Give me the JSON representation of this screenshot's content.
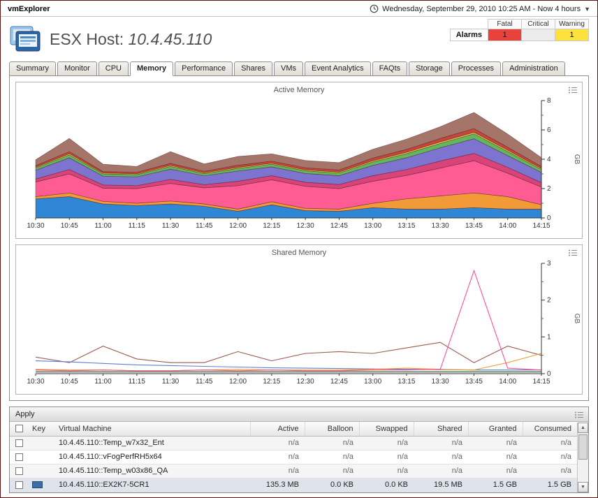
{
  "header": {
    "app_title": "vmExplorer",
    "time_range": "Wednesday, September 29, 2010 10:25 AM - Now 4 hours",
    "page_title_prefix": "ESX Host:",
    "host_ip": "10.4.45.110"
  },
  "alarms": {
    "row_label": "Alarms",
    "columns": [
      "Fatal",
      "Critical",
      "Warning"
    ],
    "values": {
      "fatal": "1",
      "critical": "",
      "warning": "1"
    },
    "colors": {
      "fatal": "#e8423c",
      "critical": "#ececec",
      "warning": "#ffe13d"
    }
  },
  "tabs": {
    "items": [
      {
        "label": "Summary",
        "active": false
      },
      {
        "label": "Monitor",
        "active": false
      },
      {
        "label": "CPU",
        "active": false
      },
      {
        "label": "Memory",
        "active": true
      },
      {
        "label": "Performance",
        "active": false
      },
      {
        "label": "Shares",
        "active": false
      },
      {
        "label": "VMs",
        "active": false
      },
      {
        "label": "Event Analytics",
        "active": false
      },
      {
        "label": "FAQts",
        "active": false
      },
      {
        "label": "Storage",
        "active": false
      },
      {
        "label": "Processes",
        "active": false
      },
      {
        "label": "Administration",
        "active": false
      }
    ]
  },
  "chart_data": [
    {
      "type": "area",
      "title": "Active Memory",
      "ylabel": "GB",
      "ylim": [
        0,
        8
      ],
      "yticks": [
        0,
        2,
        4,
        6,
        8
      ],
      "yticks_minor": [
        1,
        3,
        5,
        7
      ],
      "x_labels": [
        "10:30",
        "10:45",
        "11:00",
        "11:15",
        "11:30",
        "11:45",
        "12:00",
        "12:15",
        "12:30",
        "12:45",
        "13:00",
        "13:15",
        "13:30",
        "13:45",
        "14:00",
        "14:15"
      ],
      "series": [
        {
          "name": "blue",
          "color": "#2f86d4",
          "values": [
            1.3,
            1.45,
            0.95,
            0.85,
            0.95,
            0.8,
            0.45,
            0.9,
            0.5,
            0.45,
            0.7,
            0.6,
            0.6,
            0.7,
            0.6,
            0.6
          ]
        },
        {
          "name": "orange",
          "color": "#f29a38",
          "values": [
            0.15,
            0.25,
            0.18,
            0.15,
            0.2,
            0.15,
            0.15,
            0.2,
            0.15,
            0.15,
            0.3,
            0.7,
            0.9,
            1.0,
            0.85,
            0.3
          ]
        },
        {
          "name": "pink",
          "color": "#ff5c93",
          "values": [
            1.0,
            1.3,
            0.9,
            1.0,
            1.2,
            1.1,
            1.6,
            1.5,
            1.5,
            1.4,
            1.5,
            1.6,
            1.9,
            2.2,
            1.6,
            1.2
          ]
        },
        {
          "name": "crimson",
          "color": "#d8437a",
          "values": [
            0.2,
            0.3,
            0.22,
            0.2,
            0.28,
            0.22,
            0.3,
            0.28,
            0.28,
            0.28,
            0.38,
            0.4,
            0.48,
            0.5,
            0.4,
            0.3
          ]
        },
        {
          "name": "purple",
          "color": "#7d74cf",
          "values": [
            0.6,
            0.8,
            0.6,
            0.6,
            0.7,
            0.6,
            0.7,
            0.6,
            0.6,
            0.6,
            0.7,
            0.8,
            0.9,
            1.0,
            0.8,
            0.7
          ]
        },
        {
          "name": "green",
          "color": "#63b55e",
          "values": [
            0.15,
            0.2,
            0.15,
            0.15,
            0.18,
            0.15,
            0.18,
            0.18,
            0.18,
            0.18,
            0.24,
            0.28,
            0.3,
            0.34,
            0.28,
            0.2
          ]
        },
        {
          "name": "yellow",
          "color": "#e3cf4a",
          "values": [
            0.06,
            0.08,
            0.06,
            0.06,
            0.07,
            0.06,
            0.07,
            0.07,
            0.07,
            0.07,
            0.08,
            0.09,
            0.1,
            0.1,
            0.09,
            0.07
          ]
        },
        {
          "name": "red",
          "color": "#c8443c",
          "values": [
            0.1,
            0.14,
            0.1,
            0.1,
            0.14,
            0.1,
            0.14,
            0.14,
            0.14,
            0.14,
            0.18,
            0.2,
            0.24,
            0.25,
            0.2,
            0.14
          ]
        },
        {
          "name": "brown",
          "color": "#a5756a",
          "values": [
            0.4,
            0.9,
            0.5,
            0.4,
            0.8,
            0.5,
            0.6,
            0.5,
            0.5,
            0.5,
            0.6,
            0.7,
            0.8,
            1.1,
            0.9,
            0.6
          ]
        }
      ]
    },
    {
      "type": "line",
      "title": "Shared Memory",
      "ylabel": "GB",
      "ylim": [
        0,
        3
      ],
      "yticks": [
        0,
        1,
        2,
        3
      ],
      "yticks_minor": [
        0.5,
        1.5,
        2.5
      ],
      "x_labels": [
        "10:30",
        "10:45",
        "11:00",
        "11:15",
        "11:30",
        "11:45",
        "12:00",
        "12:15",
        "12:30",
        "12:45",
        "13:00",
        "13:15",
        "13:30",
        "13:45",
        "14:00",
        "14:15"
      ],
      "series": [
        {
          "name": "brown",
          "color": "#9c5a50",
          "values": [
            0.45,
            0.3,
            0.75,
            0.4,
            0.3,
            0.3,
            0.6,
            0.35,
            0.55,
            0.6,
            0.55,
            0.7,
            0.85,
            0.3,
            0.75,
            0.5
          ]
        },
        {
          "name": "blue",
          "color": "#5b7fd4",
          "values": [
            0.35,
            0.32,
            0.28,
            0.24,
            0.22,
            0.2,
            0.18,
            0.16,
            0.15,
            0.14,
            0.13,
            0.12,
            0.11,
            0.1,
            0.1,
            0.1
          ]
        },
        {
          "name": "orange",
          "color": "#efa03c",
          "values": [
            0.12,
            0.1,
            0.1,
            0.08,
            0.08,
            0.1,
            0.12,
            0.1,
            0.1,
            0.1,
            0.12,
            0.15,
            0.12,
            0.1,
            0.3,
            0.55
          ]
        },
        {
          "name": "green",
          "color": "#63a55e",
          "values": [
            0.06,
            0.06,
            0.06,
            0.06,
            0.06,
            0.06,
            0.06,
            0.06,
            0.06,
            0.06,
            0.06,
            0.06,
            0.06,
            0.06,
            0.06,
            0.06
          ]
        },
        {
          "name": "gray",
          "color": "#8a8a8a",
          "values": [
            0.04,
            0.04,
            0.04,
            0.04,
            0.04,
            0.04,
            0.04,
            0.04,
            0.04,
            0.04,
            0.04,
            0.04,
            0.04,
            0.04,
            0.04,
            0.04
          ]
        },
        {
          "name": "pink",
          "color": "#ff4f9a",
          "values": [
            0.1,
            0.08,
            0.1,
            0.08,
            0.08,
            0.1,
            0.08,
            0.1,
            0.08,
            0.08,
            0.1,
            0.1,
            0.12,
            2.8,
            0.15,
            0.1
          ]
        }
      ]
    }
  ],
  "table": {
    "apply_label": "Apply",
    "columns": [
      "Key",
      "Virtual Machine",
      "Active",
      "Balloon",
      "Swapped",
      "Shared",
      "Granted",
      "Consumed"
    ],
    "rows": [
      {
        "vm": "10.4.45.110::Temp_w7x32_Ent",
        "key_color": null,
        "selected": false,
        "values": [
          "n/a",
          "n/a",
          "n/a",
          "n/a",
          "n/a",
          "n/a"
        ]
      },
      {
        "vm": "10.4.45.110::vFogPerfRH5x64",
        "key_color": null,
        "selected": false,
        "values": [
          "n/a",
          "n/a",
          "n/a",
          "n/a",
          "n/a",
          "n/a"
        ]
      },
      {
        "vm": "10.4.45.110::Temp_w03x86_QA",
        "key_color": null,
        "selected": false,
        "values": [
          "n/a",
          "n/a",
          "n/a",
          "n/a",
          "n/a",
          "n/a"
        ]
      },
      {
        "vm": "10.4.45.110::EX2K7-5CR1",
        "key_color": "#3a6ea5",
        "selected": true,
        "values": [
          "135.3 MB",
          "0.0 KB",
          "0.0 KB",
          "19.5 MB",
          "1.5 GB",
          "1.5 GB"
        ]
      }
    ]
  }
}
